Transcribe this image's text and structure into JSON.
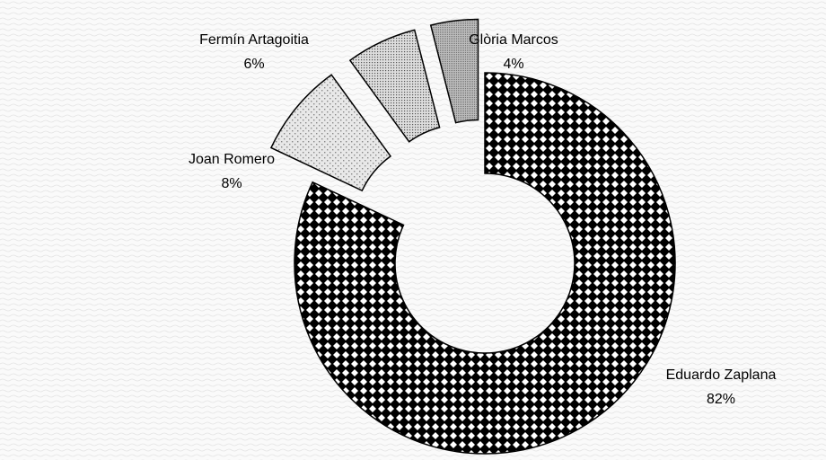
{
  "chart_data": {
    "type": "donut",
    "categories": [
      "Eduardo Zaplana",
      "Joan Romero",
      "Fermín Artagoitia",
      "Glòria Marcos"
    ],
    "values": [
      82,
      8,
      6,
      4
    ],
    "value_labels": [
      "82%",
      "8%",
      "6%",
      "4%"
    ]
  }
}
